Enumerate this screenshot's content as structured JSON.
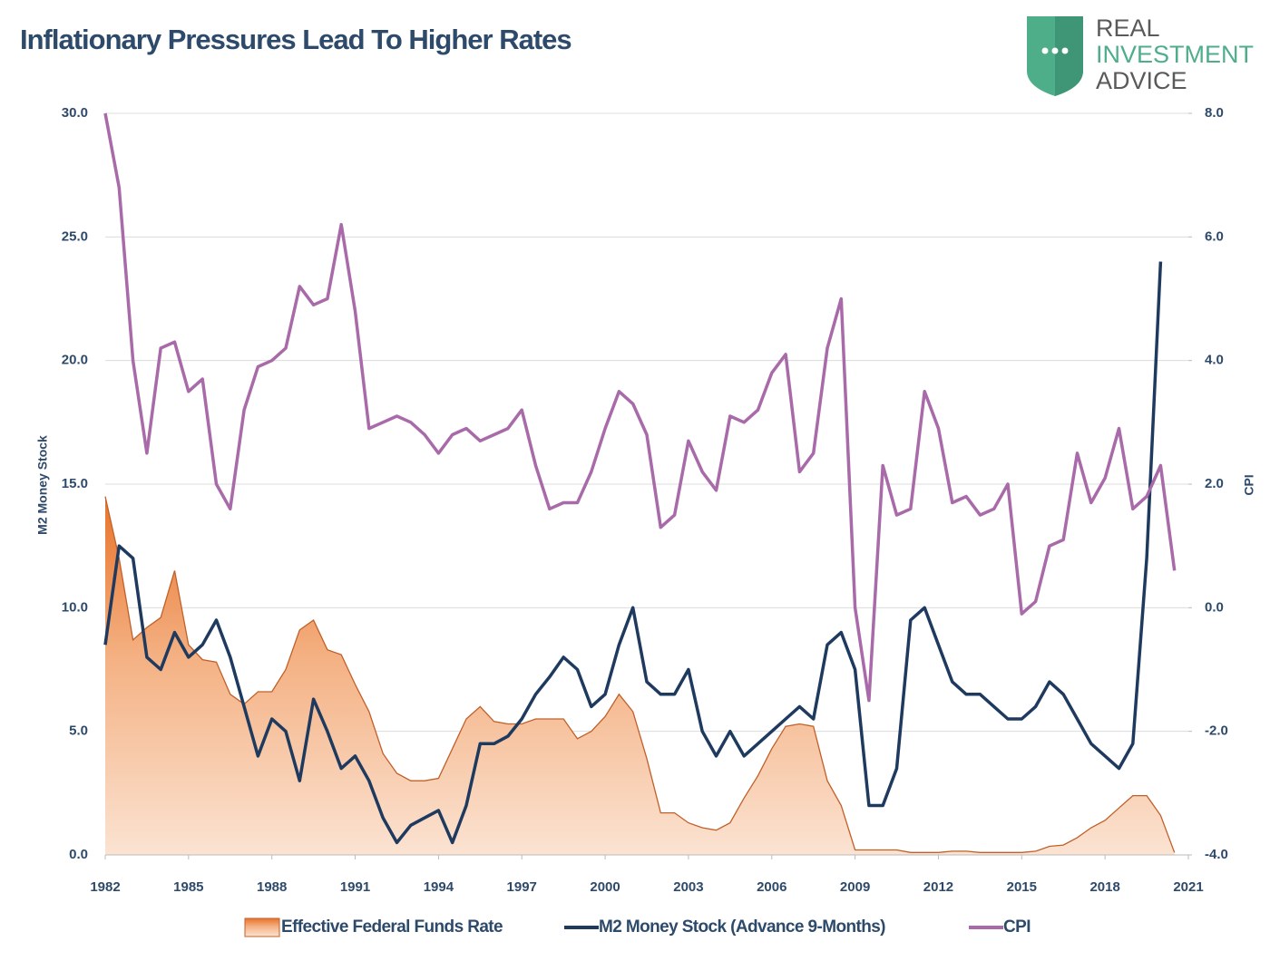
{
  "logo": [
    "REAL",
    "INVESTMENT",
    "ADVICE"
  ],
  "chart_data": {
    "type": "line",
    "title": "Inflationary Pressures Lead To Higher Rates",
    "ylabel": "M2 Money Stock",
    "y2label": "CPI",
    "x": [
      1982.0,
      1982.5,
      1983.0,
      1983.5,
      1984.0,
      1984.5,
      1985.0,
      1985.5,
      1986.0,
      1986.5,
      1987.0,
      1987.5,
      1988.0,
      1988.5,
      1989.0,
      1989.5,
      1990.0,
      1990.5,
      1991.0,
      1991.5,
      1992.0,
      1992.5,
      1993.0,
      1993.5,
      1994.0,
      1994.5,
      1995.0,
      1995.5,
      1996.0,
      1996.5,
      1997.0,
      1997.5,
      1998.0,
      1998.5,
      1999.0,
      1999.5,
      2000.0,
      2000.5,
      2001.0,
      2001.5,
      2002.0,
      2002.5,
      2003.0,
      2003.5,
      2004.0,
      2004.5,
      2005.0,
      2005.5,
      2006.0,
      2006.5,
      2007.0,
      2007.5,
      2008.0,
      2008.5,
      2009.0,
      2009.5,
      2010.0,
      2010.5,
      2011.0,
      2011.5,
      2012.0,
      2012.5,
      2013.0,
      2013.5,
      2014.0,
      2014.5,
      2015.0,
      2015.5,
      2016.0,
      2016.5,
      2017.0,
      2017.5,
      2018.0,
      2018.5,
      2019.0,
      2019.5,
      2020.0,
      2020.5
    ],
    "series": [
      {
        "name": "Effective Federal Funds Rate",
        "style": "area",
        "color": "#e87722",
        "values": [
          14.5,
          12,
          8.7,
          9.2,
          9.6,
          11.5,
          8.5,
          7.9,
          7.8,
          6.5,
          6.1,
          6.6,
          6.6,
          7.5,
          9.1,
          9.5,
          8.3,
          8.1,
          6.9,
          5.8,
          4.1,
          3.3,
          3.0,
          3.0,
          3.1,
          4.3,
          5.5,
          6.0,
          5.4,
          5.3,
          5.3,
          5.5,
          5.5,
          5.5,
          4.7,
          5.0,
          5.6,
          6.5,
          5.8,
          3.9,
          1.7,
          1.7,
          1.3,
          1.1,
          1.0,
          1.3,
          2.3,
          3.2,
          4.3,
          5.2,
          5.3,
          5.2,
          3.0,
          2.0,
          0.2,
          0.2,
          0.2,
          0.2,
          0.1,
          0.1,
          0.1,
          0.15,
          0.15,
          0.1,
          0.1,
          0.1,
          0.1,
          0.15,
          0.35,
          0.4,
          0.7,
          1.1,
          1.4,
          1.9,
          2.4,
          2.4,
          1.6,
          0.1
        ]
      },
      {
        "name": "M2 Money Stock (Advance 9-Months)",
        "style": "line",
        "color": "#1f3a5f",
        "values": [
          8.5,
          12.5,
          12.0,
          8.0,
          7.5,
          9.0,
          8.0,
          8.5,
          9.5,
          8.0,
          6.0,
          4.0,
          5.5,
          5.0,
          3.0,
          6.3,
          5.0,
          3.5,
          4.0,
          3.0,
          1.5,
          0.5,
          1.2,
          1.5,
          1.8,
          0.5,
          2.0,
          4.5,
          4.5,
          4.8,
          5.5,
          6.5,
          7.2,
          8.0,
          7.5,
          6.0,
          6.5,
          8.5,
          10.0,
          7.0,
          6.5,
          6.5,
          7.5,
          5.0,
          4.0,
          5.0,
          4.0,
          4.5,
          5.0,
          5.5,
          6.0,
          5.5,
          8.5,
          9.0,
          7.5,
          2.0,
          2.0,
          3.5,
          9.5,
          10.0,
          8.5,
          7.0,
          6.5,
          6.5,
          6.0,
          5.5,
          5.5,
          6.0,
          7.0,
          6.5,
          5.5,
          4.5,
          4.0,
          3.5,
          4.5,
          12.0,
          24.0,
          null
        ]
      },
      {
        "name": "CPI",
        "style": "line",
        "axis": "y2",
        "color": "#a86aa8",
        "values": [
          8.0,
          6.8,
          4.0,
          2.5,
          4.2,
          4.3,
          3.5,
          3.7,
          2.0,
          1.6,
          3.2,
          3.9,
          4.0,
          4.2,
          5.2,
          4.9,
          5.0,
          6.2,
          4.8,
          2.9,
          3.0,
          3.1,
          3.0,
          2.8,
          2.5,
          2.8,
          2.9,
          2.7,
          2.8,
          2.9,
          3.2,
          2.3,
          1.6,
          1.7,
          1.7,
          2.2,
          2.9,
          3.5,
          3.3,
          2.8,
          1.3,
          1.5,
          2.7,
          2.2,
          1.9,
          3.1,
          3.0,
          3.2,
          3.8,
          4.1,
          2.2,
          2.5,
          4.2,
          5.0,
          0.0,
          -1.5,
          2.3,
          1.5,
          1.6,
          3.5,
          2.9,
          1.7,
          1.8,
          1.5,
          1.6,
          2.0,
          -0.1,
          0.1,
          1.0,
          1.1,
          2.5,
          1.7,
          2.1,
          2.9,
          1.6,
          1.8,
          2.3,
          0.6
        ]
      }
    ],
    "xlim": [
      1982,
      2021
    ],
    "xticks": [
      1982,
      1985,
      1988,
      1991,
      1994,
      1997,
      2000,
      2003,
      2006,
      2009,
      2012,
      2015,
      2018,
      2021
    ],
    "ylim": [
      0,
      30
    ],
    "yticks": [
      {
        "value": 0,
        "label": "0.0"
      },
      {
        "value": 5,
        "label": "5.0"
      },
      {
        "value": 10,
        "label": "10.0"
      },
      {
        "value": 15,
        "label": "15.0"
      },
      {
        "value": 20,
        "label": "20.0"
      },
      {
        "value": 25,
        "label": "25.0"
      },
      {
        "value": 30,
        "label": "30.0"
      }
    ],
    "y2lim": [
      -4,
      8
    ],
    "y2ticks": [
      {
        "value": -4,
        "label": "-4.0"
      },
      {
        "value": -2,
        "label": "-2.0"
      },
      {
        "value": 0,
        "label": "0.0"
      },
      {
        "value": 2,
        "label": "2.0"
      },
      {
        "value": 4,
        "label": "4.0"
      },
      {
        "value": 6,
        "label": "6.0"
      },
      {
        "value": 8,
        "label": "8.0"
      }
    ],
    "grid": true,
    "legend": "bottom"
  }
}
